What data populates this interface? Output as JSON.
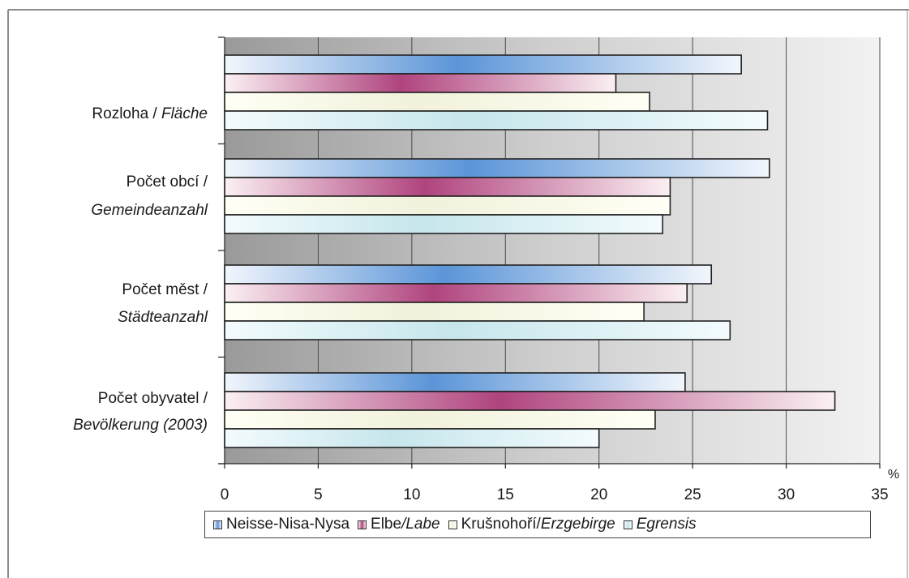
{
  "chart_data": {
    "type": "bar",
    "orientation": "horizontal",
    "categories": [
      {
        "main": "Rozloha / ",
        "italic": "Fläche",
        "line2": ""
      },
      {
        "main": "Počet obcí /",
        "italic": "",
        "line2": "Gemeindeanzahl"
      },
      {
        "main": "Počet měst /",
        "italic": "",
        "line2": "Städteanzahl"
      },
      {
        "main": "Počet obyvatel /",
        "italic": "",
        "line2": "Bevölkerung (2003)"
      }
    ],
    "series": [
      {
        "name": "Neisse-Nisa-Nysa",
        "values": [
          27.6,
          29.1,
          26.0,
          24.6
        ],
        "color": "#5b8fd6"
      },
      {
        "name": "Elbe/Labe",
        "values": [
          20.9,
          23.8,
          24.7,
          32.6
        ],
        "color": "#b0447e"
      },
      {
        "name": "Krušnohoří/Erzgebirge",
        "values": [
          22.7,
          23.8,
          22.4,
          23.0
        ],
        "color": "#f4f2dc"
      },
      {
        "name": "Egrensis",
        "values": [
          29.0,
          23.4,
          27.0,
          20.0
        ],
        "color": "#c8e6ee"
      }
    ],
    "x_ticks": [
      "0",
      "5",
      "10",
      "15",
      "20",
      "25",
      "30",
      "35"
    ],
    "xlim": [
      0,
      35
    ],
    "unit_label": "%",
    "grid": true,
    "legend_position": "bottom"
  },
  "legend": [
    {
      "plain": "Neisse-Nisa-Nysa",
      "italic": ""
    },
    {
      "plain": "Elbe",
      "italic": "/Labe"
    },
    {
      "plain": "Krušnohoří/",
      "italic": "Erzgebirge"
    },
    {
      "plain": "",
      "italic": "Egrensis"
    }
  ]
}
